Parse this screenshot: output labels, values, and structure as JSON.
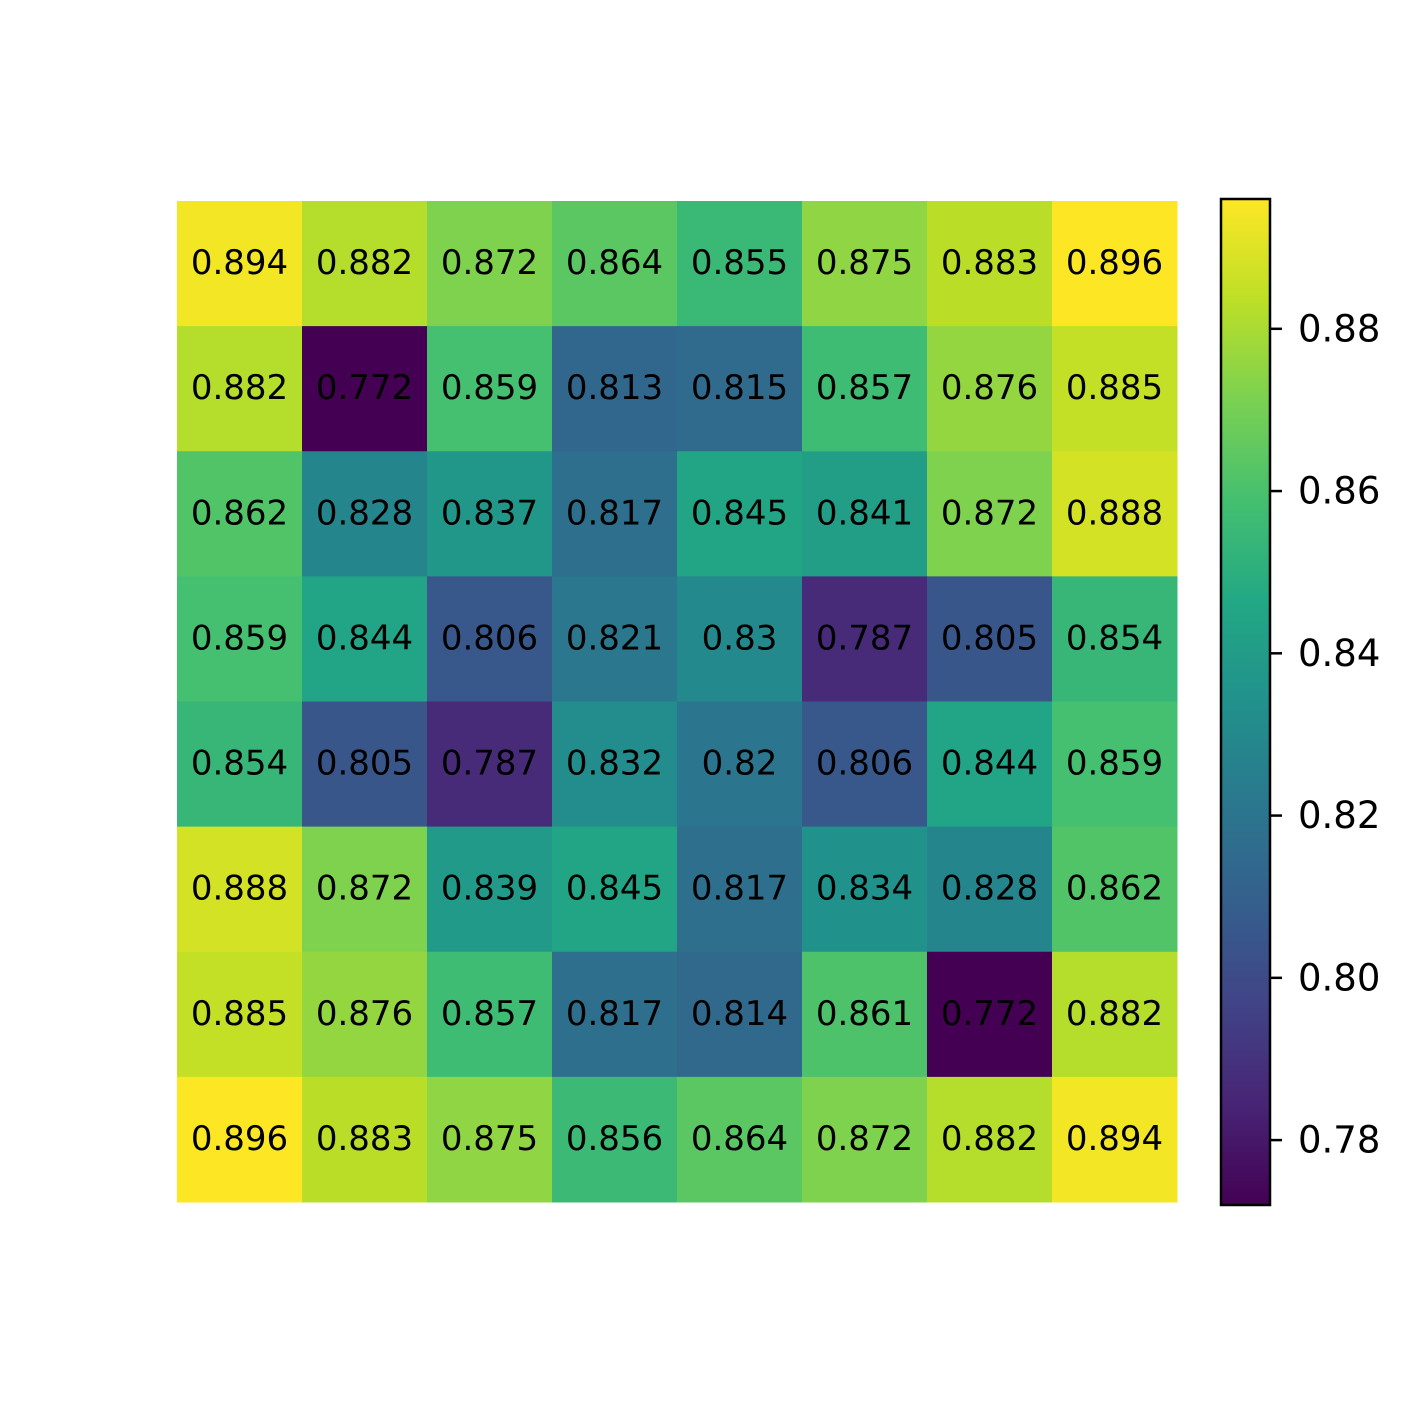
{
  "chart_data": {
    "type": "heatmap",
    "z": [
      [
        0.894,
        0.882,
        0.872,
        0.864,
        0.855,
        0.875,
        0.883,
        0.896
      ],
      [
        0.882,
        0.772,
        0.859,
        0.813,
        0.815,
        0.857,
        0.876,
        0.885
      ],
      [
        0.862,
        0.828,
        0.837,
        0.817,
        0.845,
        0.841,
        0.872,
        0.888
      ],
      [
        0.859,
        0.844,
        0.806,
        0.821,
        0.83,
        0.787,
        0.805,
        0.854
      ],
      [
        0.854,
        0.805,
        0.787,
        0.832,
        0.82,
        0.806,
        0.844,
        0.859
      ],
      [
        0.888,
        0.872,
        0.839,
        0.845,
        0.817,
        0.834,
        0.828,
        0.862
      ],
      [
        0.885,
        0.876,
        0.857,
        0.817,
        0.814,
        0.861,
        0.772,
        0.882
      ],
      [
        0.896,
        0.883,
        0.875,
        0.856,
        0.864,
        0.872,
        0.882,
        0.894
      ]
    ],
    "colormap": "viridis",
    "zlim": [
      0.772,
      0.896
    ],
    "zticks": [
      0.78,
      {
        "value": 0.8,
        "label": "0.80"
      },
      0.82,
      0.84,
      0.86,
      0.88
    ]
  }
}
